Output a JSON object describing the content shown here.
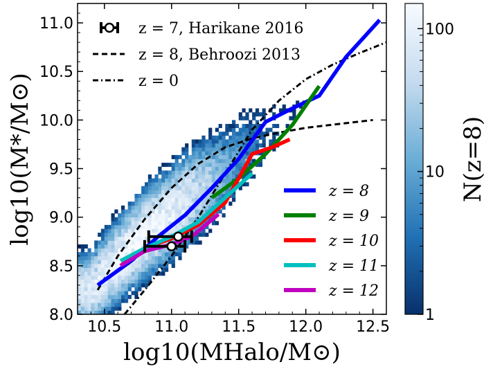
{
  "chart_data": {
    "type": "scatter",
    "xlabel": "log10(MHalo/M⊙)",
    "ylabel": "log10(M*/M⊙)",
    "xlim": [
      10.3,
      12.6
    ],
    "ylim": [
      8.0,
      11.2
    ],
    "x_ticks": [
      "10.5",
      "11.0",
      "11.5",
      "12.0",
      "12.5"
    ],
    "y_ticks": [
      "8.0",
      "8.5",
      "9.0",
      "9.5",
      "10.0",
      "10.5",
      "11.0"
    ],
    "colorbar": {
      "label": "N(z=8)",
      "scale": "log",
      "range": [
        1,
        150
      ],
      "ticks": [
        "1",
        "10",
        "100"
      ],
      "colors": [
        "#08306b",
        "#2171b5",
        "#6baed6",
        "#c6dbef",
        "#f7fbff"
      ]
    },
    "density_ridge": {
      "x": [
        10.4,
        10.6,
        10.8,
        11.0,
        11.2,
        11.4,
        11.6,
        11.8,
        12.0,
        12.2,
        12.4,
        12.55
      ],
      "y": [
        8.25,
        8.55,
        8.82,
        9.05,
        9.28,
        9.5,
        9.75,
        9.95,
        10.15,
        10.45,
        10.8,
        11.05
      ],
      "max_count": 150
    },
    "observations": {
      "name": "z = 7, Harikane 2016",
      "points": [
        {
          "x": 11.05,
          "y": 8.8,
          "xerr": [
            0.22,
            0.1
          ]
        },
        {
          "x": 11.0,
          "y": 8.7,
          "xerr": [
            0.2,
            0.1
          ]
        }
      ]
    },
    "reference_curves": [
      {
        "name": "z = 8,  Behroozi 2013",
        "style": "dashed",
        "x": [
          10.45,
          10.6,
          10.8,
          11.0,
          11.2,
          11.4,
          11.6,
          11.8,
          12.0,
          12.25,
          12.5
        ],
        "y": [
          8.25,
          8.6,
          8.98,
          9.3,
          9.55,
          9.72,
          9.81,
          9.87,
          9.92,
          9.96,
          10.0
        ]
      },
      {
        "name": "z = 0",
        "style": "dashdot",
        "x": [
          10.65,
          10.8,
          11.0,
          11.2,
          11.4,
          11.6,
          11.8,
          12.0,
          12.2,
          12.4,
          12.6
        ],
        "y": [
          8.0,
          8.25,
          8.6,
          9.0,
          9.45,
          9.9,
          10.2,
          10.42,
          10.57,
          10.69,
          10.8
        ]
      }
    ],
    "series": [
      {
        "name": "z = 8",
        "color": "#0000ff",
        "x": [
          10.45,
          10.7,
          10.9,
          11.1,
          11.3,
          11.5,
          11.7,
          11.9,
          12.1,
          12.3,
          12.55
        ],
        "y": [
          8.3,
          8.55,
          8.8,
          9.02,
          9.3,
          9.6,
          9.98,
          10.12,
          10.25,
          10.65,
          11.03
        ]
      },
      {
        "name": "z = 9",
        "color": "#008000",
        "x": [
          11.3,
          11.5,
          11.7,
          11.9,
          12.1
        ],
        "y": [
          9.2,
          9.4,
          9.65,
          9.95,
          10.35
        ]
      },
      {
        "name": "z = 10",
        "color": "#ff0000",
        "x": [
          10.62,
          10.8,
          11.0,
          11.2,
          11.4,
          11.6,
          11.75,
          11.88
        ],
        "y": [
          8.5,
          8.68,
          8.78,
          8.92,
          9.15,
          9.65,
          9.72,
          9.8
        ]
      },
      {
        "name": "z = 11",
        "color": "#00bfbf",
        "x": [
          10.62,
          10.8,
          11.0,
          11.2,
          11.4,
          11.6
        ],
        "y": [
          8.55,
          8.68,
          8.8,
          8.95,
          9.2,
          9.45
        ]
      },
      {
        "name": "z = 12",
        "color": "#bf00bf",
        "x": [
          10.62,
          10.8,
          11.0,
          11.15,
          11.35
        ],
        "y": [
          8.5,
          8.65,
          8.72,
          8.8,
          9.03
        ]
      }
    ]
  }
}
